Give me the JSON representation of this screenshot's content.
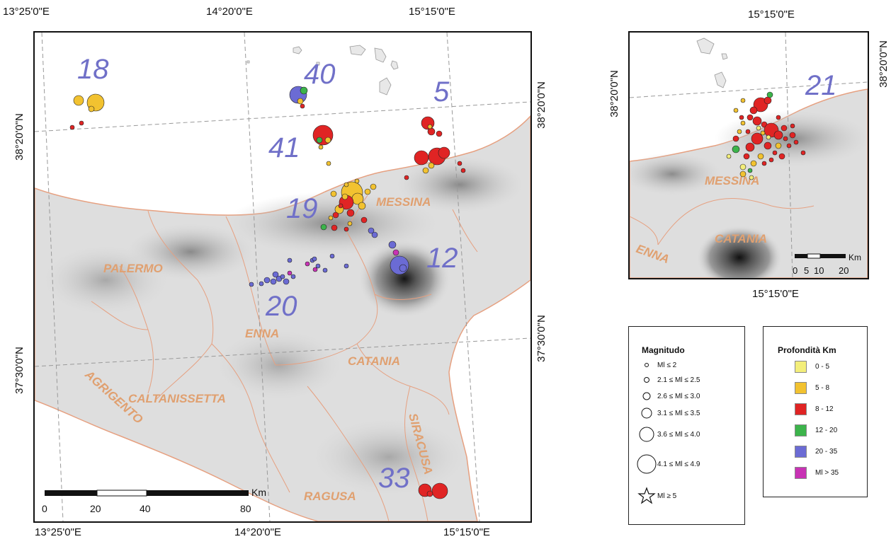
{
  "main_map": {
    "top_ticks": [
      "13°25'0\"E",
      "14°20'0\"E",
      "15°15'0\"E"
    ],
    "bottom_ticks": [
      "13°25'0\"E",
      "14°20'0\"E",
      "15°15'0\"E"
    ],
    "left_ticks": [
      "38°20'0\"N",
      "37°30'0\"N"
    ],
    "right_ticks": [
      "38°20'0\"N",
      "37°30'0\"N"
    ],
    "provinces": [
      "PALERMO",
      "MESSINA",
      "ENNA",
      "CATANIA",
      "AGRIGENTO",
      "CALTANISSETTA",
      "SIRACUSA",
      "RAGUSA"
    ],
    "cluster_ids": [
      "18",
      "40",
      "41",
      "5",
      "19",
      "12",
      "20",
      "33"
    ],
    "scale": {
      "unit": "Km",
      "ticks": [
        "0",
        "20",
        "40",
        "80"
      ]
    }
  },
  "inset_map": {
    "top_tick": "15°15'0\"E",
    "bottom_tick": "15°15'0\"E",
    "left_tick": "38°20'0\"N",
    "right_tick": "38°20'0\"N",
    "provinces": [
      "MESSINA",
      "CATANIA",
      "ENNA"
    ],
    "cluster_id": "21",
    "scale": {
      "unit": "Km",
      "ticks": [
        "0",
        "5",
        "10",
        "20"
      ]
    }
  },
  "legend_magnitude": {
    "title": "Magnitudo",
    "items": [
      "Ml ≤ 2",
      "2.1 ≤ Ml ≤ 2.5",
      "2.6 ≤ Ml ≤ 3.0",
      "3.1 ≤ Ml ≤ 3.5",
      "3.6 ≤ Ml ≤ 4.0",
      "4.1 ≤ Ml ≤ 4.9",
      "Ml ≥ 5"
    ]
  },
  "legend_depth": {
    "title": "Profondità Km",
    "items": [
      {
        "label": "0 - 5",
        "color": "#f3ee7a"
      },
      {
        "label": "5 - 8",
        "color": "#f2c230"
      },
      {
        "label": "8 - 12",
        "color": "#e02424"
      },
      {
        "label": "12 - 20",
        "color": "#3cb44b"
      },
      {
        "label": "20 - 35",
        "color": "#6b6bd4"
      },
      {
        "label": "Ml > 35",
        "color": "#c832b4"
      }
    ]
  },
  "colors": {
    "province_label": "#e0a070",
    "cluster_label": "#7070c8",
    "boundary": "#e6a080",
    "grid": "#999999"
  }
}
